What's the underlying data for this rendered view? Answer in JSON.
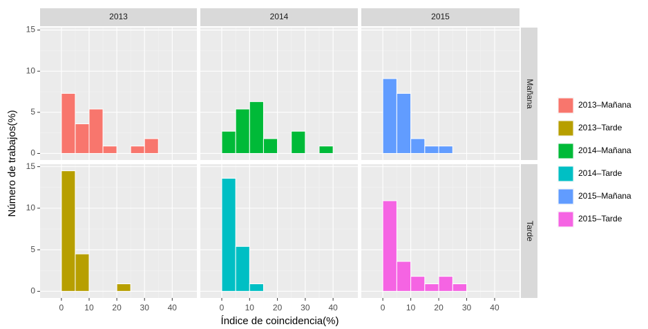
{
  "chart_data": {
    "type": "histogram",
    "xlabel": "Índice de coincidencia(%)",
    "ylabel": "Número de trabajos(%)",
    "facet_columns": [
      "2013",
      "2014",
      "2015"
    ],
    "facet_rows": [
      "Mañana",
      "Tarde"
    ],
    "bins": [
      0,
      5,
      10,
      15,
      20,
      25,
      30,
      35,
      40,
      45
    ],
    "series": [
      {
        "name": "2013–Mañana",
        "color": "#f8766d",
        "values": [
          7.3,
          3.6,
          5.4,
          0.9,
          0,
          0.9,
          1.8,
          0,
          0
        ]
      },
      {
        "name": "2013–Tarde",
        "color": "#b79f00",
        "values": [
          14.5,
          4.5,
          0,
          0,
          0.9,
          0,
          0,
          0,
          0
        ]
      },
      {
        "name": "2014–Mañana",
        "color": "#00ba38",
        "values": [
          2.7,
          5.4,
          6.3,
          1.8,
          0,
          2.7,
          0,
          0.9,
          0
        ]
      },
      {
        "name": "2014–Tarde",
        "color": "#00bfc4",
        "values": [
          13.6,
          5.4,
          0.9,
          0,
          0,
          0,
          0,
          0,
          0
        ]
      },
      {
        "name": "2015–Mañana",
        "color": "#619cff",
        "values": [
          9.1,
          7.3,
          1.8,
          0.9,
          0.9,
          0,
          0,
          0,
          0
        ]
      },
      {
        "name": "2015–Tarde",
        "color": "#f564e3",
        "values": [
          10.9,
          3.6,
          1.8,
          0.9,
          1.8,
          0.9,
          0,
          0,
          0
        ]
      }
    ],
    "xlim": [
      -7.7,
      48.9
    ],
    "xticks": [
      0,
      10,
      20,
      30,
      40
    ],
    "ylim": [
      -0.8,
      15.3
    ],
    "yticks": [
      0,
      5,
      10,
      15
    ],
    "grid": true,
    "legend": "right"
  }
}
